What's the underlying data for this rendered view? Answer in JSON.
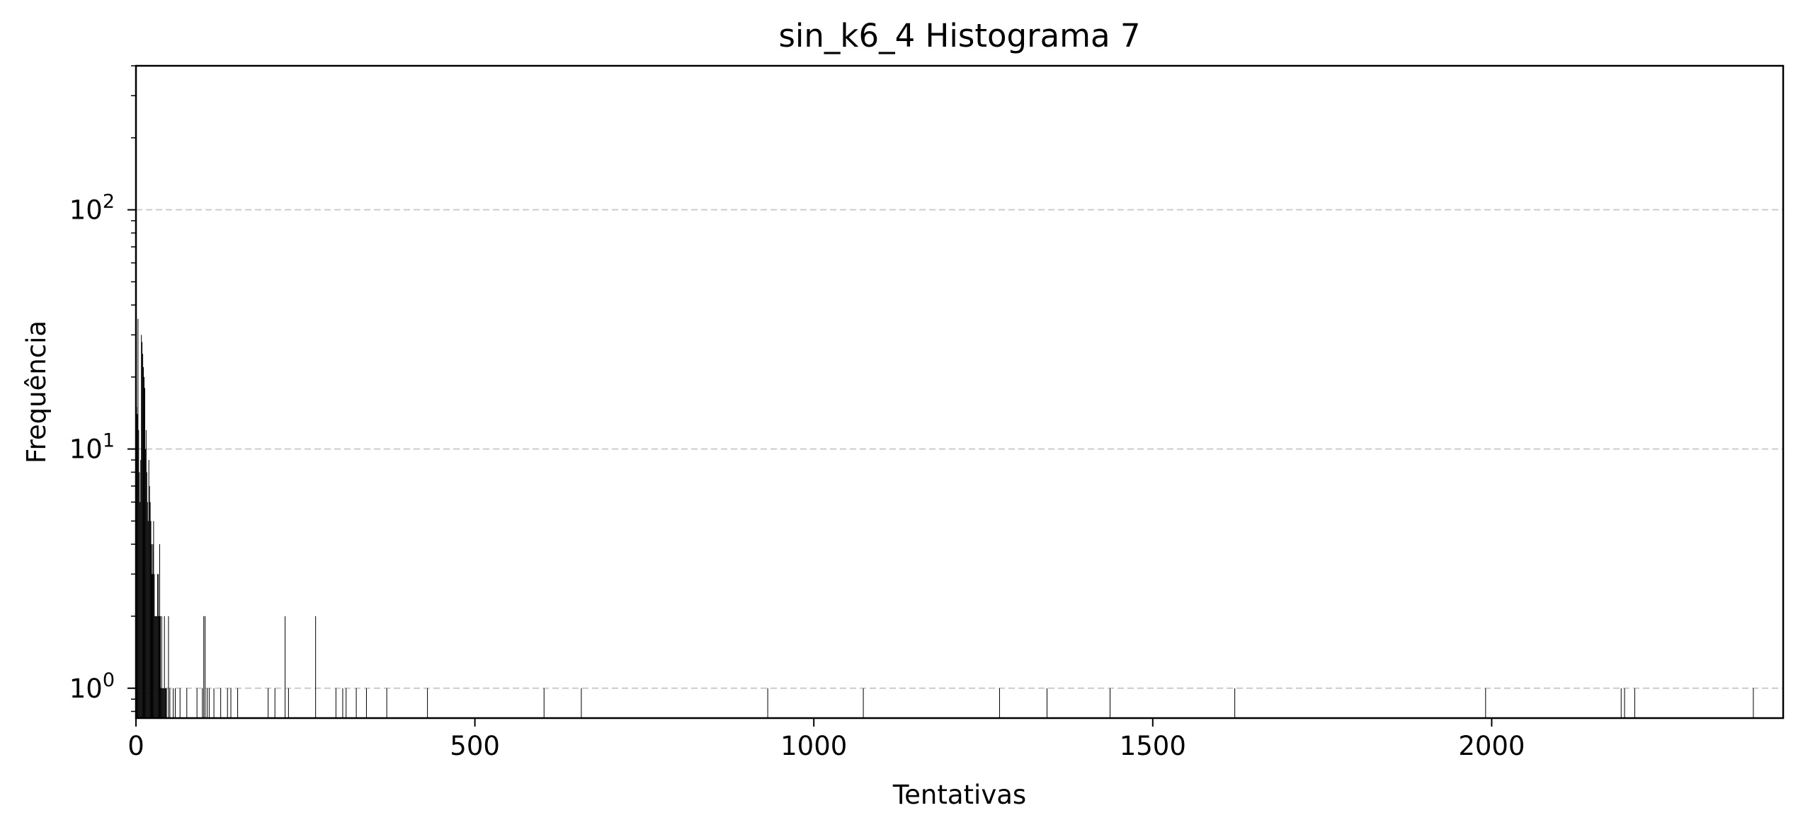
{
  "chart_data": {
    "type": "bar",
    "title": "sin_k6_4 Histograma 7",
    "xlabel": "Tentativas",
    "ylabel": "Frequência",
    "xlim": [
      0,
      2430
    ],
    "ylim": [
      0.75,
      400
    ],
    "yscale": "log",
    "grid": "y-major-dashed",
    "xticks": [
      0,
      500,
      1000,
      1500,
      2000
    ],
    "xtick_labels": [
      "0",
      "500",
      "1000",
      "1500",
      "2000"
    ],
    "yticks": [
      1,
      10,
      100
    ],
    "ytick_labels": [
      {
        "base": "10",
        "exp": "0"
      },
      {
        "base": "10",
        "exp": "1"
      },
      {
        "base": "10",
        "exp": "2"
      }
    ],
    "x": [
      1,
      2,
      3,
      4,
      5,
      6,
      7,
      8,
      9,
      10,
      11,
      12,
      13,
      14,
      15,
      16,
      17,
      18,
      19,
      20,
      21,
      22,
      23,
      24,
      25,
      26,
      27,
      28,
      29,
      30,
      31,
      32,
      33,
      34,
      35,
      36,
      37,
      38,
      39,
      40,
      41,
      42,
      43,
      44,
      45,
      48,
      50,
      55,
      58,
      65,
      75,
      90,
      98,
      100,
      102,
      105,
      108,
      115,
      125,
      135,
      140,
      150,
      195,
      205,
      220,
      225,
      265,
      295,
      305,
      310,
      325,
      340,
      370,
      430,
      602,
      657,
      932,
      1073,
      1274,
      1344,
      1437,
      1621,
      1991,
      2191,
      2196,
      2211,
      2386
    ],
    "values": [
      15,
      14,
      35,
      12,
      8,
      6,
      9,
      30,
      28,
      25,
      22,
      20,
      18,
      10,
      12,
      8,
      6,
      5,
      9,
      7,
      6,
      5,
      4,
      3,
      4,
      5,
      3,
      2,
      2,
      2,
      2,
      3,
      3,
      2,
      4,
      2,
      1,
      2,
      1,
      1,
      1,
      2,
      1,
      1,
      1,
      2,
      1,
      1,
      1,
      1,
      1,
      1,
      1,
      2,
      2,
      1,
      1,
      1,
      1,
      1,
      1,
      1,
      1,
      1,
      2,
      1,
      2,
      1,
      1,
      1,
      1,
      1,
      1,
      1,
      1,
      1,
      1,
      1,
      1,
      1,
      1,
      1,
      1,
      1,
      1,
      1,
      1
    ],
    "bar_color": "#000000",
    "grid_color": "#cccccc"
  }
}
